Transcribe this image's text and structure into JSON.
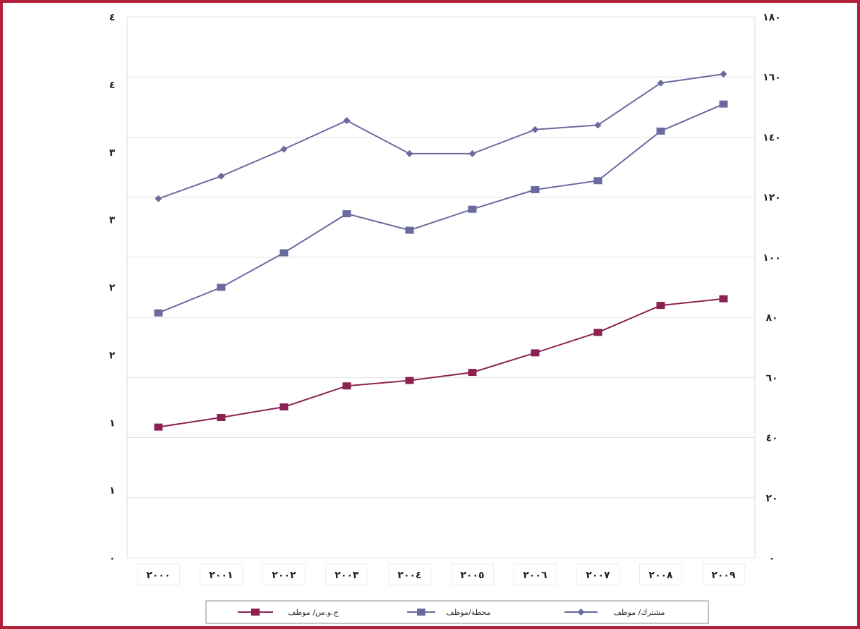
{
  "chart_data": {
    "type": "line",
    "categories": [
      "٢٠٠٠",
      "٢٠٠١",
      "٢٠٠٢",
      "٢٠٠٣",
      "٢٠٠٤",
      "٢٠٠٥",
      "٢٠٠٦",
      "٢٠٠٧",
      "٢٠٠٨",
      "٢٠٠٩"
    ],
    "left_ticks": [
      "٠",
      "١",
      "١",
      "٢",
      "٢",
      "٣",
      "٣",
      "٤",
      "٤"
    ],
    "right_ticks": [
      "٠",
      "٢٠",
      "٤٠",
      "٦٠",
      "٨٠",
      "١٠٠",
      "١٢٠",
      "١٤٠",
      "١٦٠",
      "١٨٠"
    ],
    "ylim": [
      0,
      180
    ],
    "grid": true,
    "legend_position": "bottom",
    "series": [
      {
        "name": "ج.و.س/ موظف",
        "marker": "square",
        "color": "#8b2252",
        "values": [
          43.5,
          46.7,
          50.2,
          57.2,
          59.0,
          61.7,
          68.2,
          75.0,
          84.0,
          86.2
        ]
      },
      {
        "name": "محطة/موظف",
        "marker": "square",
        "color": "#6a6a9e",
        "values": [
          81.5,
          90.0,
          101.5,
          114.5,
          109.0,
          116.0,
          122.5,
          125.5,
          142.0,
          151.0
        ]
      },
      {
        "name": "مشترك/ موظف",
        "marker": "diamond",
        "color": "#6a6a9e",
        "values": [
          119.5,
          127.0,
          136.0,
          145.5,
          134.5,
          134.5,
          142.5,
          144.0,
          158.0,
          161.0
        ]
      }
    ]
  }
}
